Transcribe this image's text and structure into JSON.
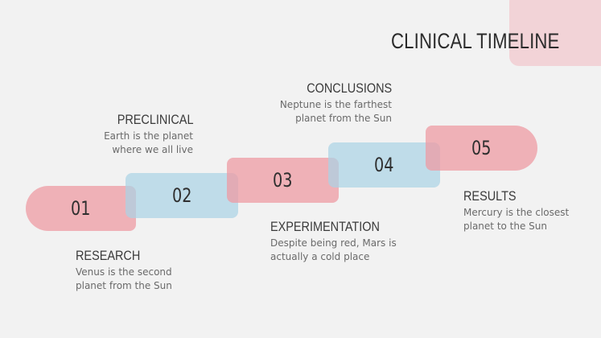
{
  "title": "CLINICAL TIMELINE",
  "colors": {
    "pink": "#eea0a8",
    "blue": "#b4d8e8",
    "deco": "#f2d3d7",
    "background": "#f2f2f2"
  },
  "steps": [
    {
      "number": "01",
      "heading": "RESEARCH",
      "description": "Venus is the second\nplanet from the Sun"
    },
    {
      "number": "02",
      "heading": "PRECLINICAL",
      "description": "Earth is the planet\nwhere we all live"
    },
    {
      "number": "03",
      "heading": "EXPERIMENTATION",
      "description": "Despite being red, Mars is\nactually a cold place"
    },
    {
      "number": "04",
      "heading": "CONCLUSIONS",
      "description": "Neptune is the farthest\nplanet from the Sun"
    },
    {
      "number": "05",
      "heading": "RESULTS",
      "description": "Mercury is the closest\nplanet to the Sun"
    }
  ]
}
